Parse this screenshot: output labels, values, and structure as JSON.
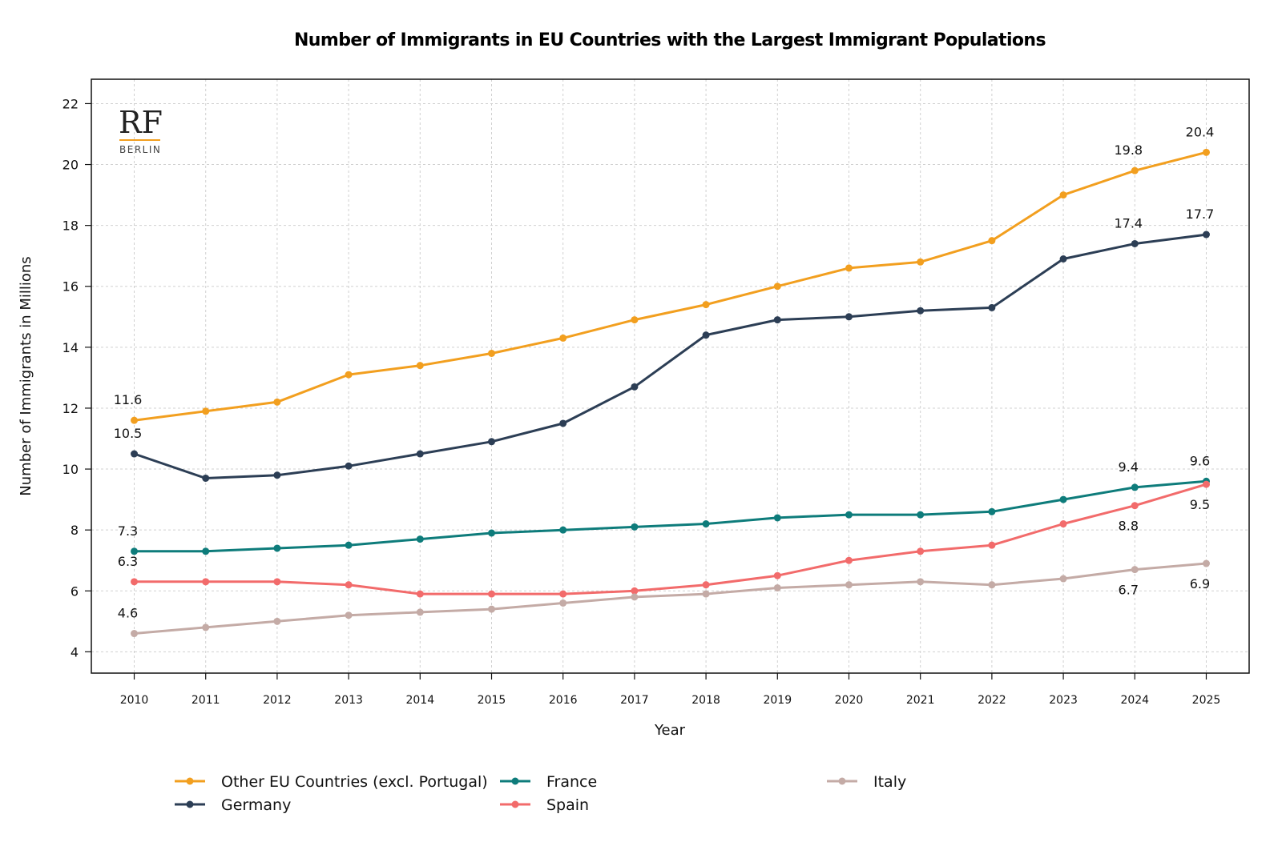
{
  "logo": {
    "mark": "RF",
    "city": "BERLIN"
  },
  "chart_data": {
    "type": "line",
    "title": "Number of Immigrants in EU Countries with the Largest Immigrant Populations",
    "xlabel": "Year",
    "ylabel": "Number of Immigrants in Millions",
    "x": [
      2010,
      2011,
      2012,
      2013,
      2014,
      2015,
      2016,
      2017,
      2018,
      2019,
      2020,
      2021,
      2022,
      2023,
      2024,
      2025
    ],
    "xlim": [
      2009.4,
      2025.6
    ],
    "ylim": [
      3.3,
      22.8
    ],
    "yticks": [
      4,
      6,
      8,
      10,
      12,
      14,
      16,
      18,
      20,
      22
    ],
    "grid": true,
    "legend_position": "bottom",
    "series": [
      {
        "name": "Other EU Countries (excl. Portugal)",
        "color": "#F29F1F",
        "values": [
          11.6,
          11.9,
          12.2,
          13.1,
          13.4,
          13.8,
          14.3,
          14.9,
          15.4,
          16.0,
          16.6,
          16.8,
          17.5,
          19.0,
          19.8,
          20.4
        ],
        "labels": [
          {
            "x": 2010,
            "text": "11.6",
            "pos": "above"
          },
          {
            "x": 2024,
            "text": "19.8",
            "pos": "above"
          },
          {
            "x": 2025,
            "text": "20.4",
            "pos": "above"
          }
        ]
      },
      {
        "name": "Germany",
        "color": "#2C3E55",
        "values": [
          10.5,
          9.7,
          9.8,
          10.1,
          10.5,
          10.9,
          11.5,
          12.7,
          14.4,
          14.9,
          15.0,
          15.2,
          15.3,
          16.9,
          17.4,
          17.7
        ],
        "labels": [
          {
            "x": 2010,
            "text": "10.5",
            "pos": "above"
          },
          {
            "x": 2024,
            "text": "17.4",
            "pos": "above"
          },
          {
            "x": 2025,
            "text": "17.7",
            "pos": "above"
          }
        ]
      },
      {
        "name": "France",
        "color": "#0E7C7B",
        "values": [
          7.3,
          7.3,
          7.4,
          7.5,
          7.7,
          7.9,
          8.0,
          8.1,
          8.2,
          8.4,
          8.5,
          8.5,
          8.6,
          9.0,
          9.4,
          9.6
        ],
        "labels": [
          {
            "x": 2010,
            "text": "7.3",
            "pos": "above"
          },
          {
            "x": 2024,
            "text": "9.4",
            "pos": "above"
          },
          {
            "x": 2025,
            "text": "9.6",
            "pos": "above"
          }
        ]
      },
      {
        "name": "Spain",
        "color": "#F26B6B",
        "values": [
          6.3,
          6.3,
          6.3,
          6.2,
          5.9,
          5.9,
          5.9,
          6.0,
          6.2,
          6.5,
          7.0,
          7.3,
          7.5,
          8.2,
          8.8,
          9.5
        ],
        "labels": [
          {
            "x": 2010,
            "text": "6.3",
            "pos": "above"
          },
          {
            "x": 2024,
            "text": "8.8",
            "pos": "below"
          },
          {
            "x": 2025,
            "text": "9.5",
            "pos": "below"
          }
        ]
      },
      {
        "name": "Italy",
        "color": "#C4ABA6",
        "values": [
          4.6,
          4.8,
          5.0,
          5.2,
          5.3,
          5.4,
          5.6,
          5.8,
          5.9,
          6.1,
          6.2,
          6.3,
          6.2,
          6.4,
          6.7,
          6.9
        ],
        "labels": [
          {
            "x": 2010,
            "text": "4.6",
            "pos": "above"
          },
          {
            "x": 2024,
            "text": "6.7",
            "pos": "below"
          },
          {
            "x": 2025,
            "text": "6.9",
            "pos": "below"
          }
        ]
      }
    ]
  }
}
